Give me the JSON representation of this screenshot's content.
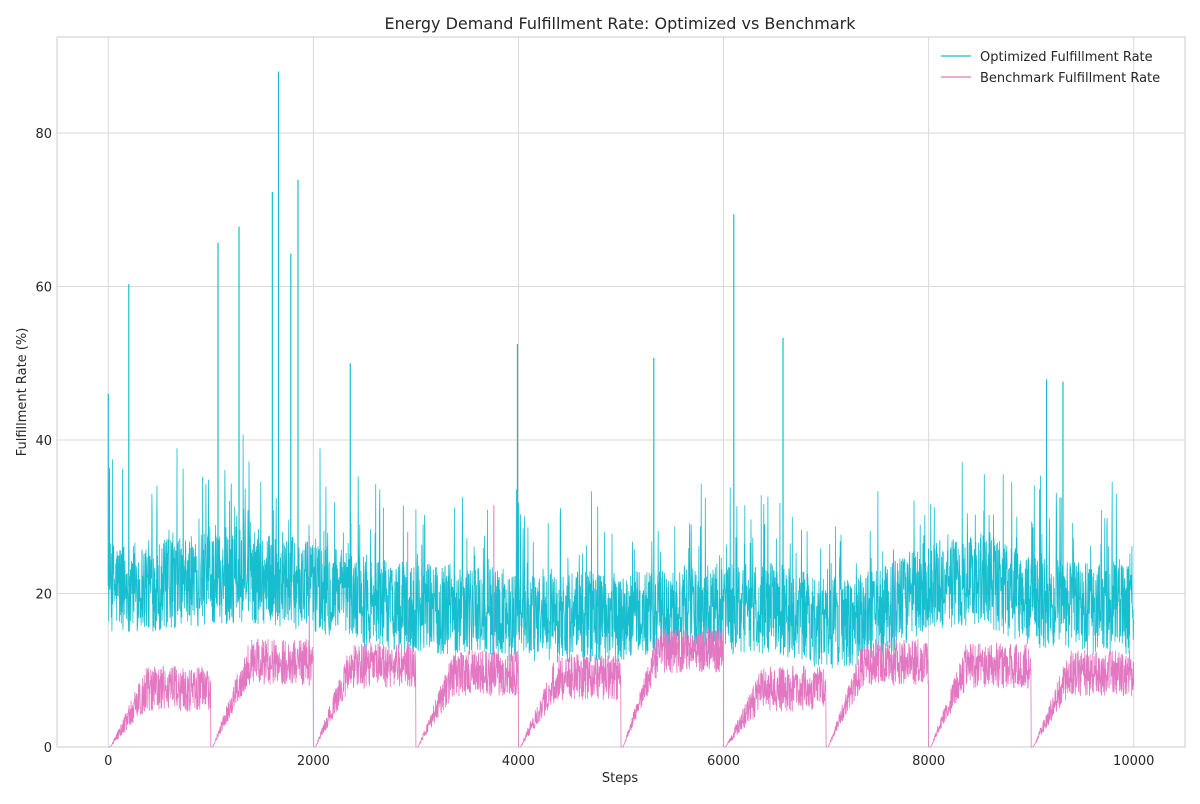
{
  "chart_data": {
    "type": "line",
    "title": "Energy Demand Fulfillment Rate: Optimized vs Benchmark",
    "xlabel": "Steps",
    "ylabel": "Fulfillment Rate (%)",
    "xlim": [
      -500,
      10500
    ],
    "ylim": [
      0,
      92.5
    ],
    "xticks": [
      0,
      2000,
      4000,
      6000,
      8000,
      10000
    ],
    "xtick_labels": [
      "0",
      "2000",
      "4000",
      "6000",
      "8000",
      "10000"
    ],
    "yticks": [
      0,
      20,
      40,
      60,
      80
    ],
    "ytick_labels": [
      "0",
      "20",
      "40",
      "60",
      "80"
    ],
    "grid": true,
    "legend_position": "top-right",
    "series": [
      {
        "name": "Optimized Fulfillment Rate",
        "color": "#17becf",
        "x": [
          0,
          500,
          1000,
          1500,
          2000,
          2500,
          3000,
          3500,
          4000,
          4500,
          5000,
          5500,
          6000,
          6500,
          7000,
          7500,
          8000,
          8500,
          9000,
          9500,
          10000
        ],
        "values": [
          21,
          21,
          22,
          22,
          21,
          19,
          18,
          18,
          17,
          17,
          17,
          17,
          18,
          18,
          16,
          17,
          21,
          22,
          19,
          18,
          18
        ],
        "peaks": [
          [
            0,
            46
          ],
          [
            200,
            60.3
          ],
          [
            1070,
            65.7
          ],
          [
            1275,
            67.8
          ],
          [
            1600,
            72.3
          ],
          [
            1660,
            88
          ],
          [
            1780,
            64.3
          ],
          [
            1850,
            73.9
          ],
          [
            2360,
            50
          ],
          [
            3990,
            52.5
          ],
          [
            5320,
            50.7
          ],
          [
            6100,
            69.4
          ],
          [
            6580,
            53.3
          ],
          [
            9150,
            47.9
          ],
          [
            9310,
            47.6
          ]
        ]
      },
      {
        "name": "Benchmark Fulfillment Rate",
        "color": "#e377c2",
        "x": [
          0,
          500,
          1000,
          1500,
          2000,
          2500,
          3000,
          3500,
          4000,
          4500,
          5000,
          5500,
          6000,
          6500,
          7000,
          7500,
          8000,
          8500,
          9000,
          9500,
          10000
        ],
        "values": [
          0,
          10,
          0,
          10,
          0,
          11,
          0,
          7,
          0,
          8,
          0,
          10,
          0,
          9,
          0,
          8,
          0,
          6,
          0,
          8,
          8
        ],
        "peaks": [
          [
            3760,
            31.5
          ],
          [
            2920,
            28
          ],
          [
            1960,
            27.5
          ],
          [
            7660,
            24.3
          ]
        ]
      }
    ]
  }
}
